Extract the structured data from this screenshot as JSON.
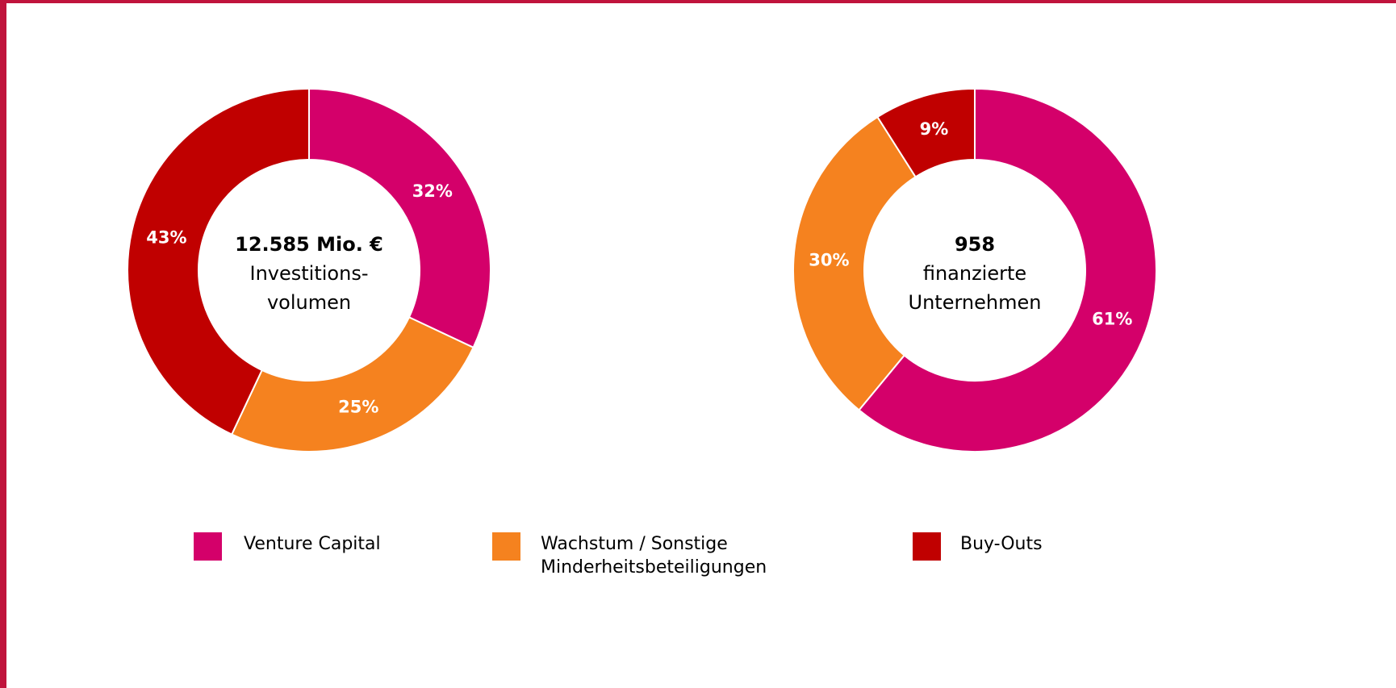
{
  "legend": [
    {
      "name": "Venture Capital",
      "color": "#d4006a"
    },
    {
      "name": "Wachstum / Sonstige Minderheitsbeteiligungen",
      "color": "#f5821f"
    },
    {
      "name": "Buy-Outs",
      "color": "#c00000"
    }
  ],
  "chart_data": [
    {
      "type": "pie",
      "center_value": "12.585 Mio. €",
      "center_lines": [
        "Investitions-",
        "volumen"
      ],
      "values": [
        32,
        25,
        43
      ],
      "value_labels": [
        "32%",
        "25%",
        "43%"
      ]
    },
    {
      "type": "pie",
      "center_value": "958",
      "center_lines": [
        "finanzierte",
        "Unternehmen"
      ],
      "values": [
        61,
        30,
        9
      ],
      "value_labels": [
        "61%",
        "30%",
        "9%"
      ]
    }
  ]
}
